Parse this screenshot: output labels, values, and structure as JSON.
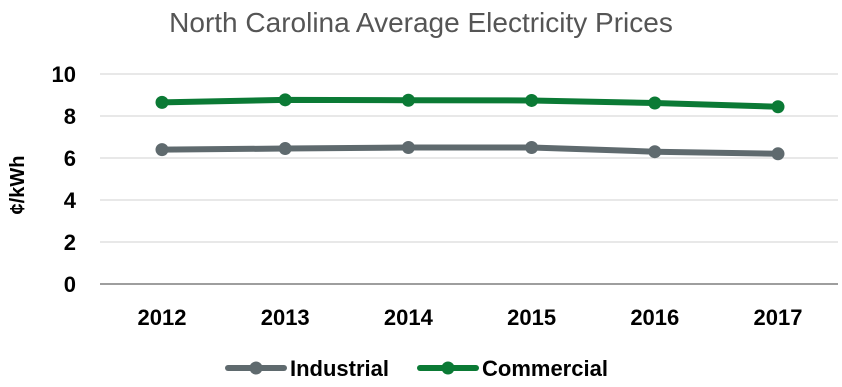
{
  "chart_data": {
    "type": "line",
    "title": "North Carolina Average Electricity Prices",
    "xlabel": "",
    "ylabel": "¢/kWh",
    "categories": [
      "2012",
      "2013",
      "2014",
      "2015",
      "2016",
      "2017"
    ],
    "ylim": [
      0,
      10
    ],
    "yticks": [
      "0",
      "2",
      "4",
      "6",
      "8",
      "10"
    ],
    "grid": true,
    "legend_position": "bottom",
    "series": [
      {
        "name": "Industrial",
        "color": "#5f6a6e",
        "values": [
          6.4,
          6.45,
          6.5,
          6.5,
          6.3,
          6.2
        ]
      },
      {
        "name": "Commercial",
        "color": "#0b7a35",
        "values": [
          8.65,
          8.77,
          8.75,
          8.74,
          8.62,
          8.44
        ]
      }
    ]
  }
}
